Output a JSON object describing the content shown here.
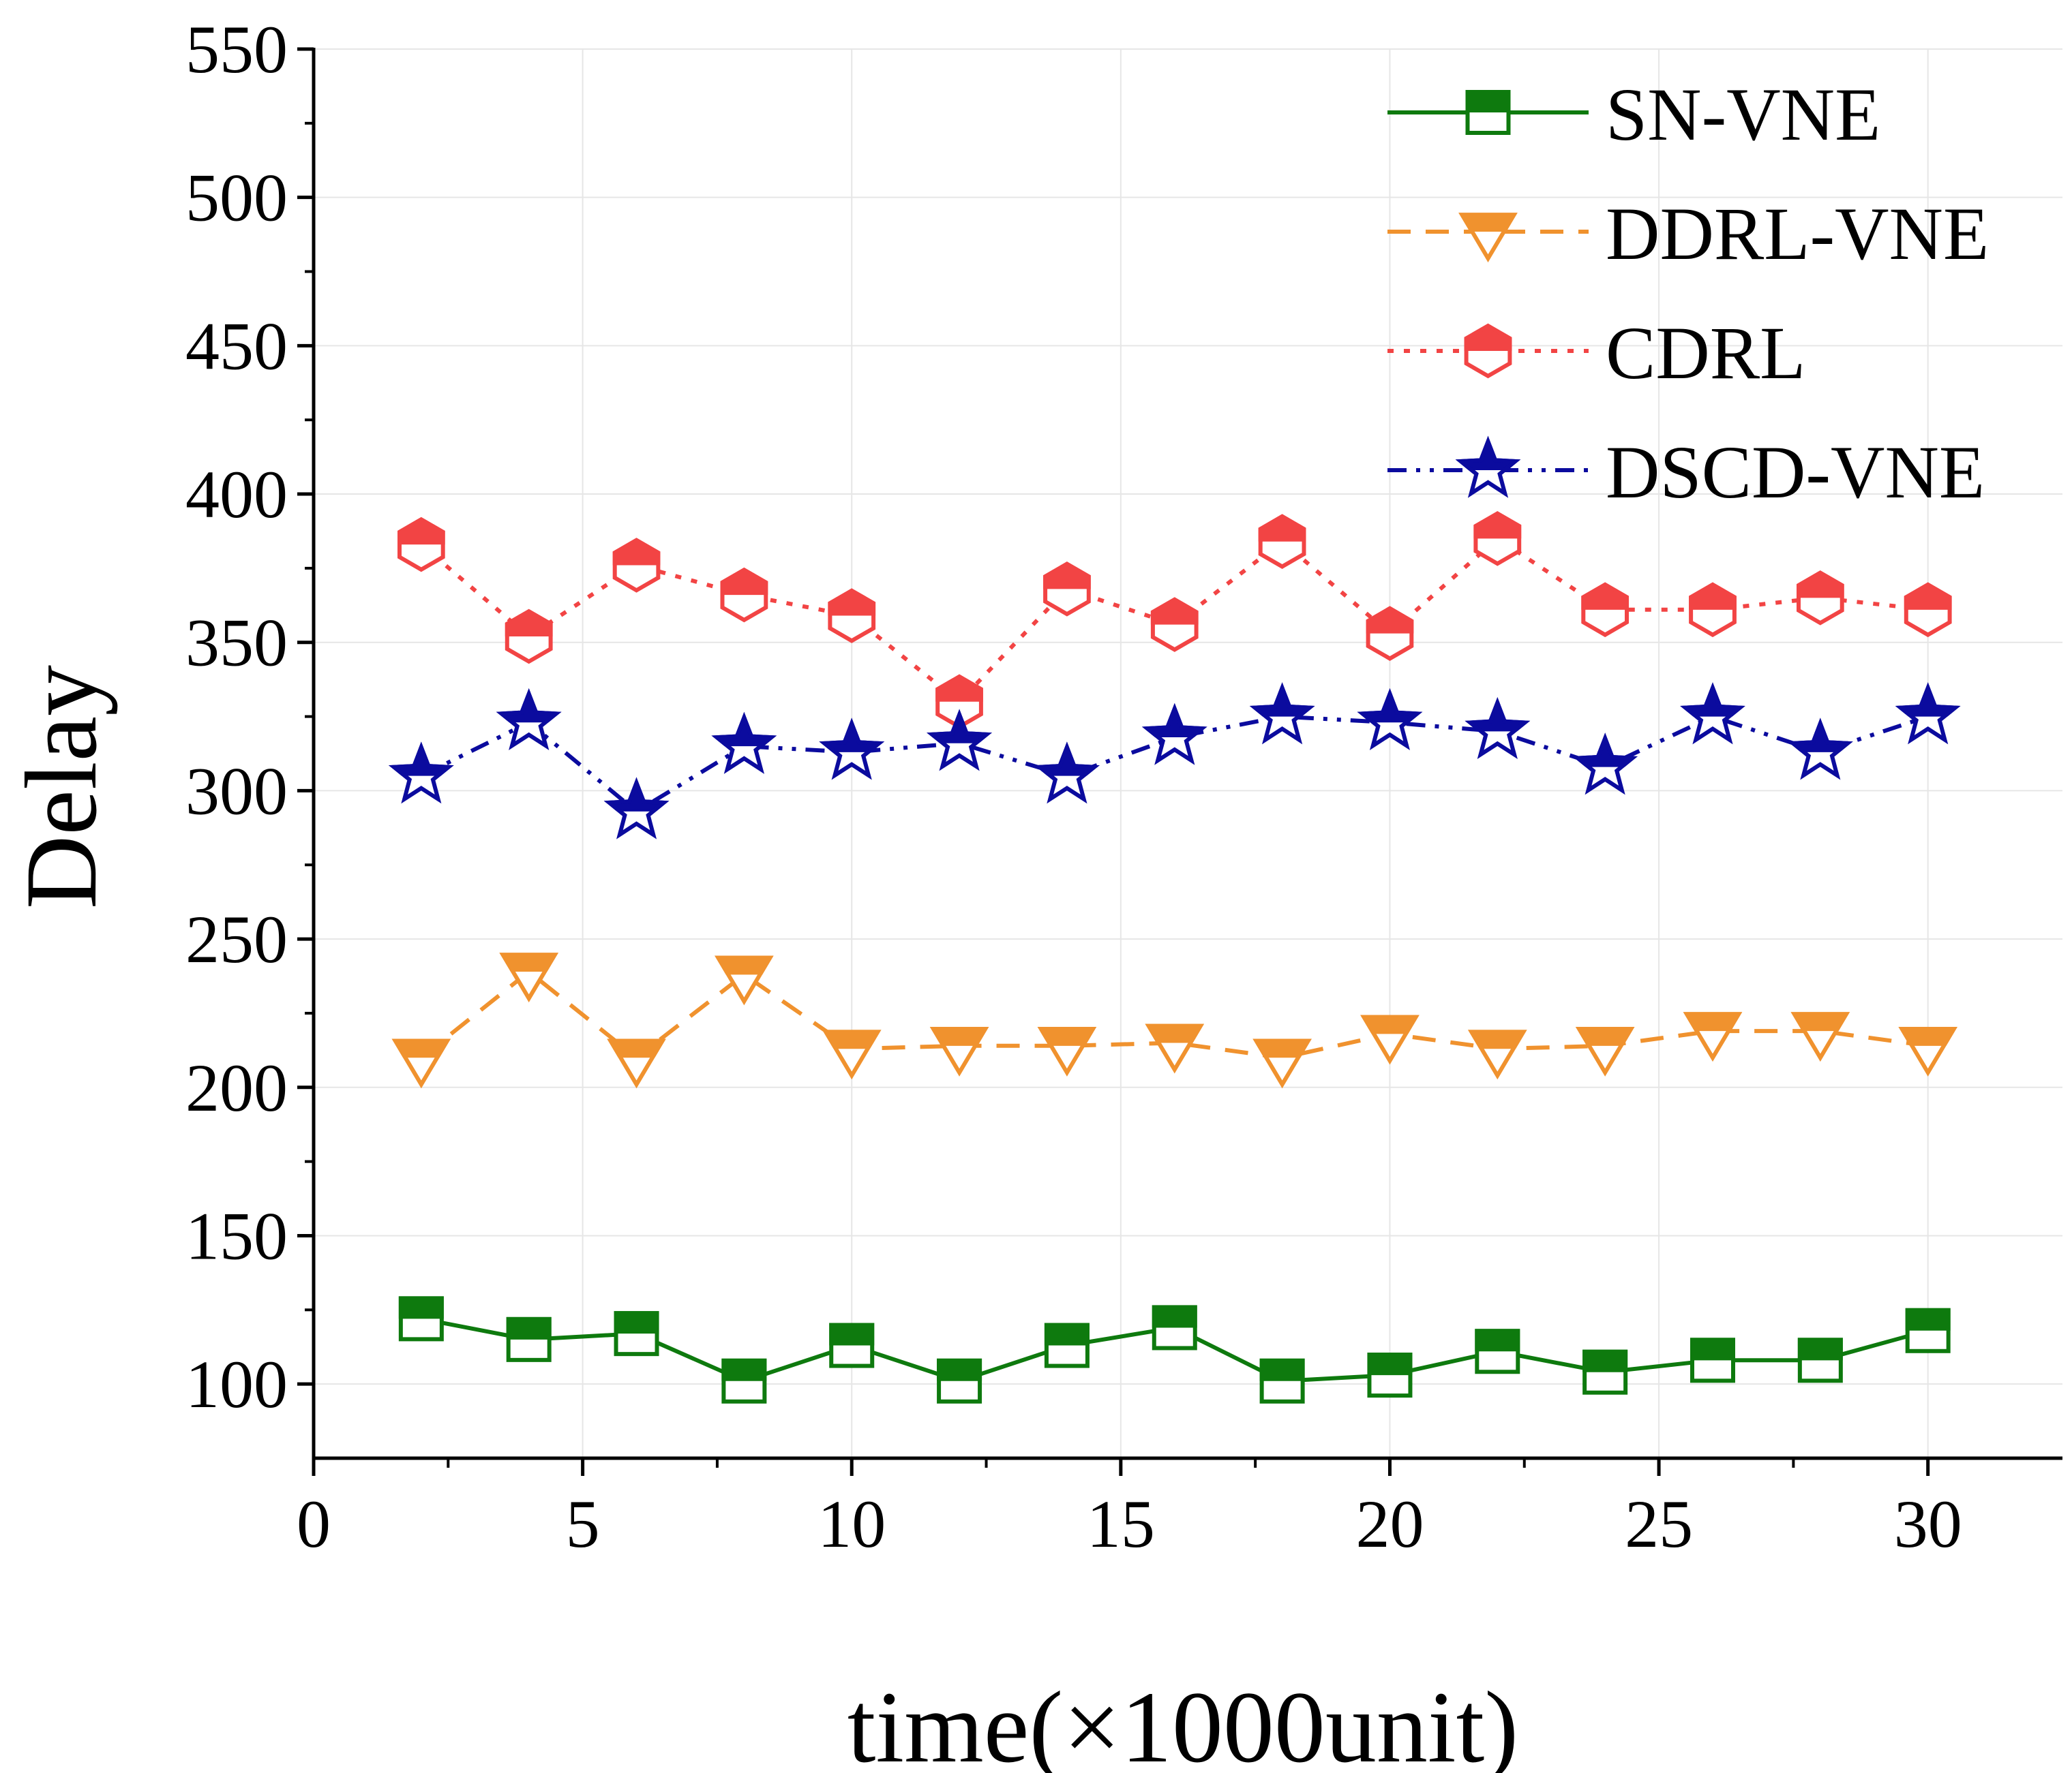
{
  "chart_data": {
    "type": "line",
    "title": "",
    "xlabel": "time(×1000unit)",
    "ylabel": "Delay",
    "xlim": [
      0,
      32.5
    ],
    "ylim": [
      75,
      550
    ],
    "xticks": [
      0,
      5,
      10,
      15,
      20,
      25,
      30
    ],
    "yticks": [
      100,
      150,
      200,
      250,
      300,
      350,
      400,
      450,
      500,
      550
    ],
    "grid": true,
    "legend_position": "top-right",
    "x": [
      2,
      4,
      6,
      8,
      10,
      12,
      14,
      16,
      18,
      20,
      22,
      24,
      26,
      28,
      30
    ],
    "series": [
      {
        "name": "SN-VNE",
        "color": "#0e7a0e",
        "marker": "square",
        "line_style": "solid",
        "values": [
          122,
          115,
          117,
          101,
          113,
          101,
          113,
          119,
          101,
          103,
          111,
          104,
          108,
          108,
          118
        ]
      },
      {
        "name": "DDRL-VNE",
        "color": "#f0922e",
        "marker": "triangle-down",
        "line_style": "dash",
        "values": [
          210,
          239,
          210,
          238,
          213,
          214,
          214,
          215,
          210,
          218,
          213,
          214,
          219,
          219,
          214
        ]
      },
      {
        "name": "CDRL",
        "color": "#f24444",
        "marker": "hexagon",
        "line_style": "dot",
        "values": [
          383,
          352,
          376,
          366,
          359,
          330,
          368,
          356,
          384,
          353,
          385,
          361,
          361,
          365,
          361
        ]
      },
      {
        "name": "DSCD-VNE",
        "color": "#0b0b9e",
        "marker": "star",
        "line_style": "dash-dot-dot",
        "values": [
          305,
          323,
          293,
          315,
          313,
          316,
          305,
          318,
          325,
          323,
          320,
          308,
          325,
          313,
          325
        ]
      }
    ]
  }
}
